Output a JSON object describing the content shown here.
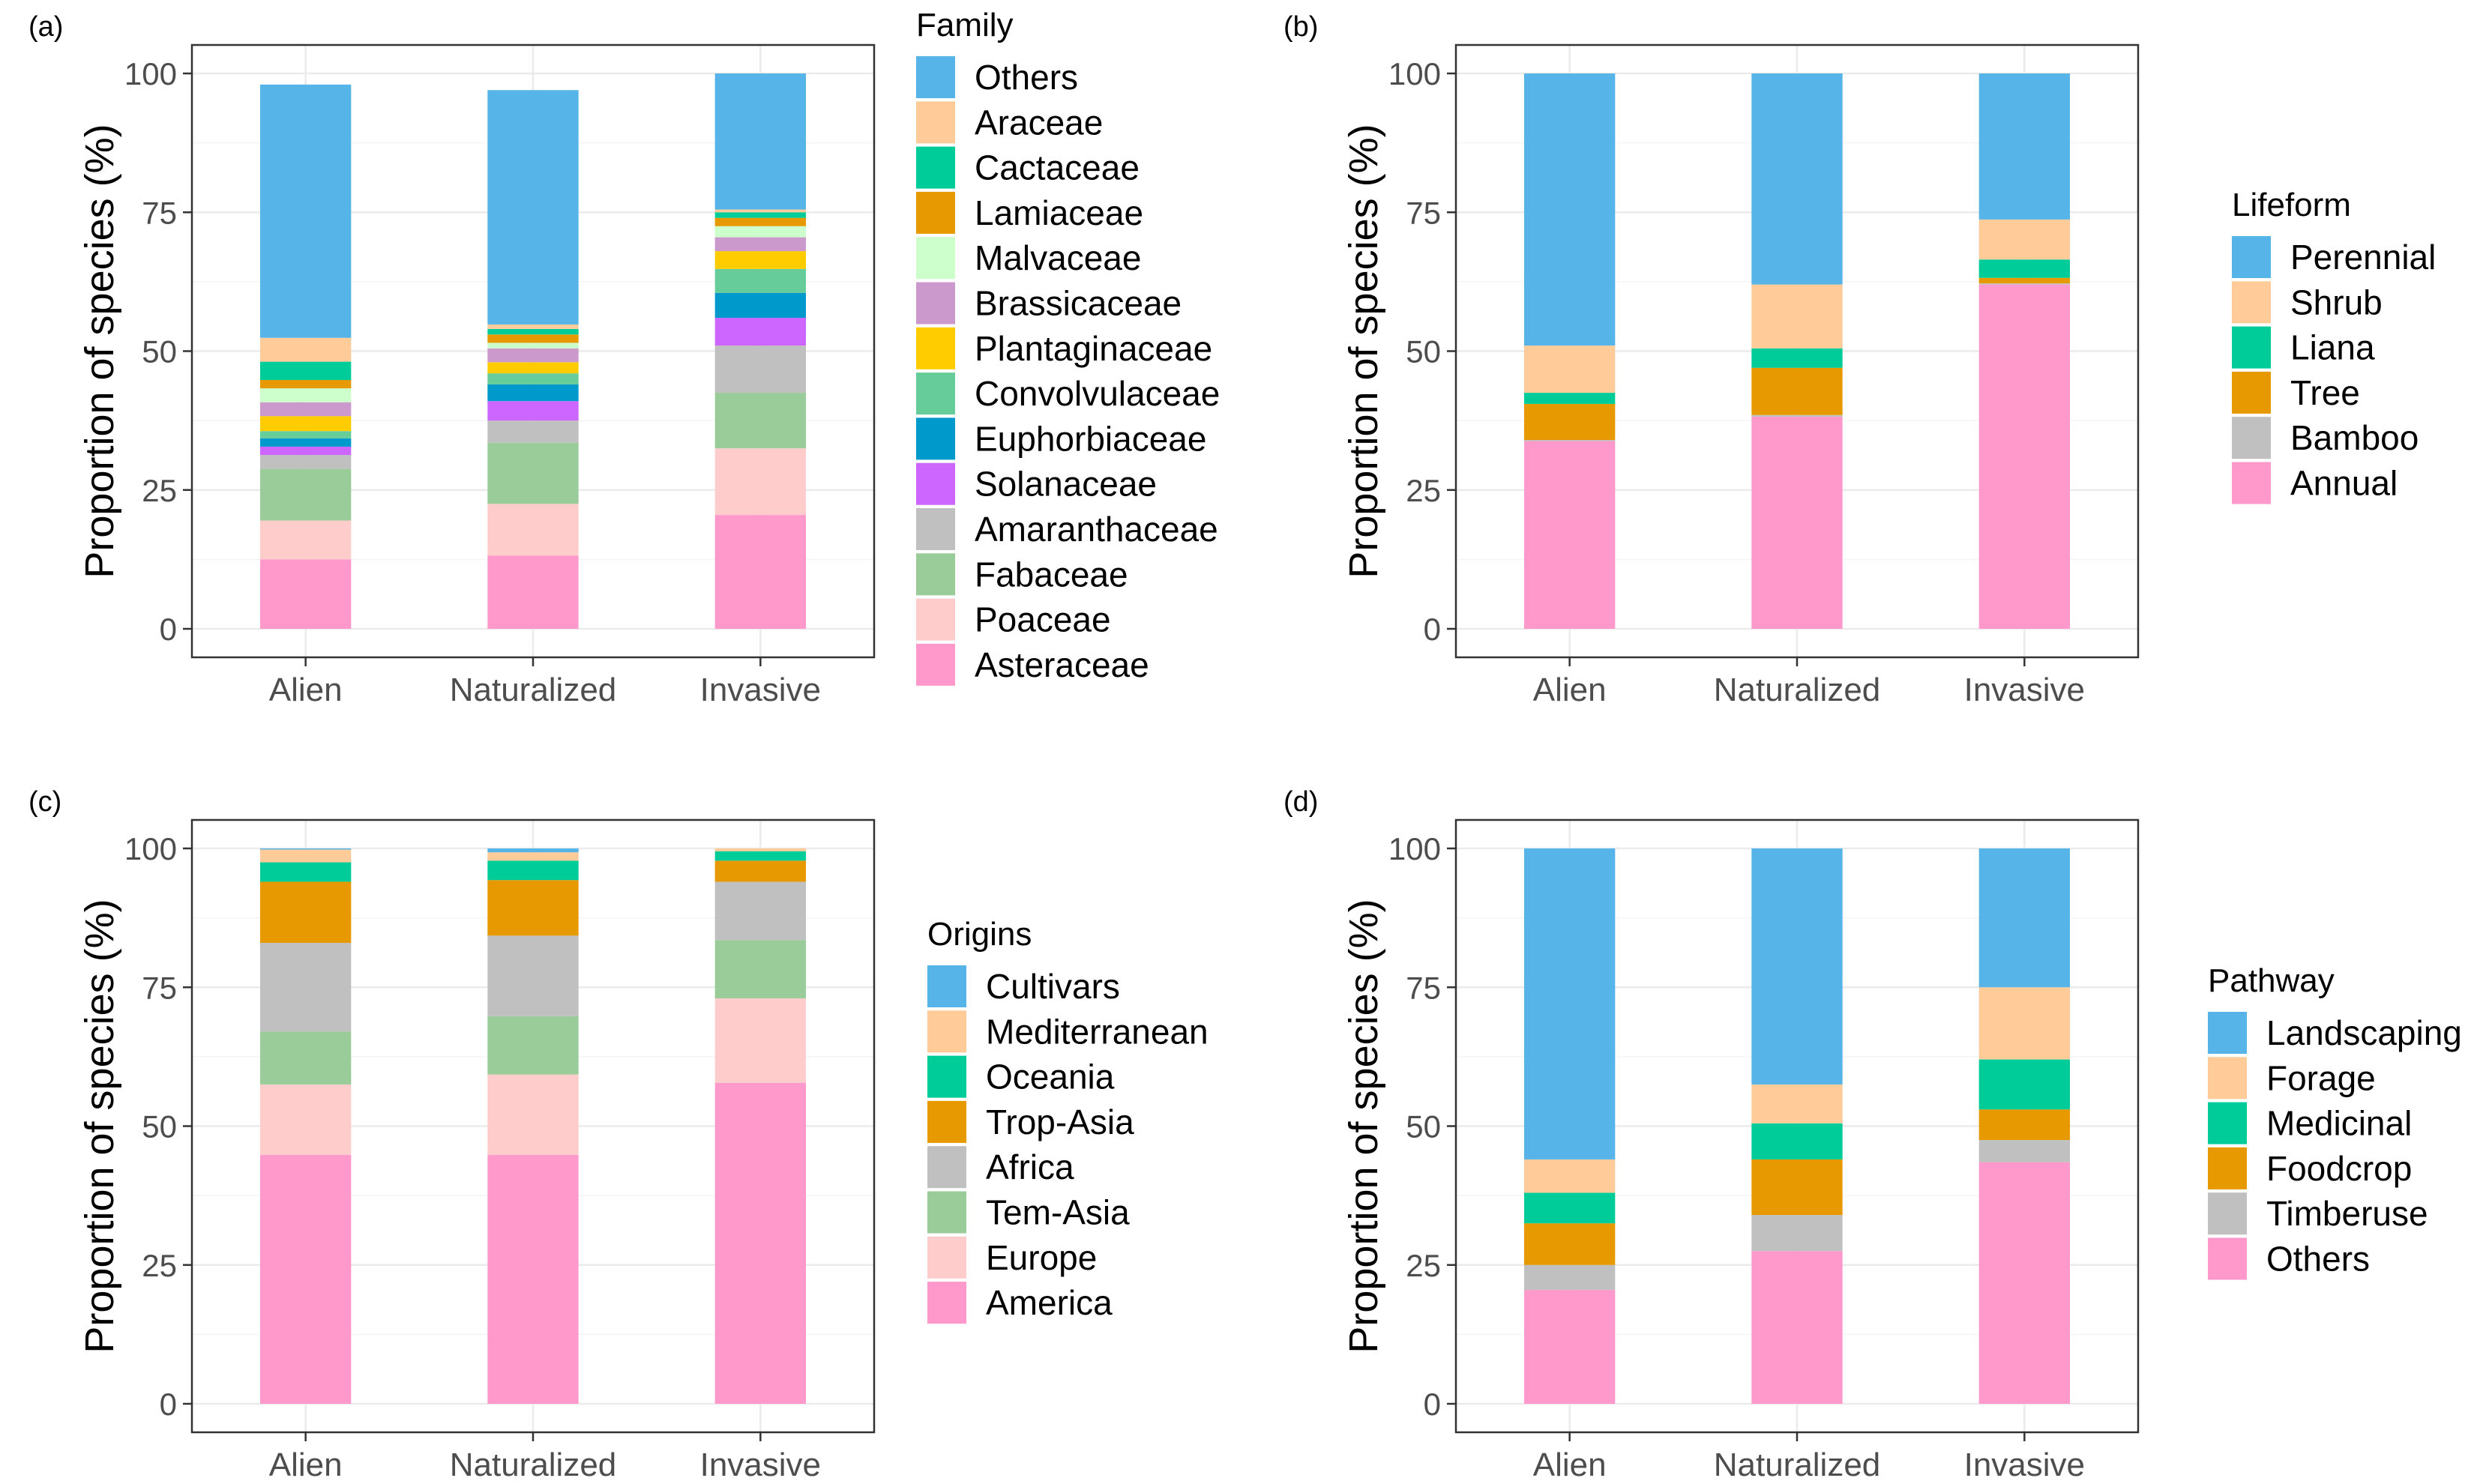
{
  "chart_data": [
    {
      "panel_label": "(a)",
      "type": "bar",
      "stacked": true,
      "categories": [
        "Alien",
        "Naturalized",
        "Invasive"
      ],
      "ylabel": "Proportion of species (%)",
      "ylim": [
        0,
        100
      ],
      "yticks": [
        "0",
        "25",
        "50",
        "75",
        "100"
      ],
      "legend_title": "Family",
      "series": [
        {
          "name": "Asteraceae",
          "color": "#FF99CC",
          "values": [
            12.5,
            13.2,
            20.5
          ]
        },
        {
          "name": "Poaceae",
          "color": "#FFCCCC",
          "values": [
            7.0,
            9.3,
            12.0
          ]
        },
        {
          "name": "Fabaceae",
          "color": "#99CC99",
          "values": [
            9.3,
            11.0,
            10.0
          ]
        },
        {
          "name": "Amaranthaceae",
          "color": "#C0C0C0",
          "values": [
            2.5,
            4.0,
            8.5
          ]
        },
        {
          "name": "Solanaceae",
          "color": "#CC66FF",
          "values": [
            1.5,
            3.5,
            5.0
          ]
        },
        {
          "name": "Euphorbiaceae",
          "color": "#0099CC",
          "values": [
            1.5,
            3.0,
            4.5
          ]
        },
        {
          "name": "Convolvulaceae",
          "color": "#66CC99",
          "values": [
            1.3,
            2.0,
            4.3
          ]
        },
        {
          "name": "Plantaginaceae",
          "color": "#FFCC00",
          "values": [
            2.7,
            2.0,
            3.2
          ]
        },
        {
          "name": "Brassicaceae",
          "color": "#CC99CC",
          "values": [
            2.5,
            2.5,
            2.5
          ]
        },
        {
          "name": "Malvaceae",
          "color": "#CCFFCC",
          "values": [
            2.5,
            1.0,
            2.0
          ]
        },
        {
          "name": "Lamiaceae",
          "color": "#E69900",
          "values": [
            1.5,
            1.5,
            1.5
          ]
        },
        {
          "name": "Cactaceae",
          "color": "#00CC99",
          "values": [
            3.3,
            1.0,
            1.0
          ]
        },
        {
          "name": "Araceae",
          "color": "#FFCC99",
          "values": [
            4.3,
            0.8,
            0.5
          ]
        },
        {
          "name": "Others",
          "color": "#56B4E9",
          "values": [
            45.6,
            42.2,
            24.5
          ]
        }
      ]
    },
    {
      "panel_label": "(b)",
      "type": "bar",
      "stacked": true,
      "categories": [
        "Alien",
        "Naturalized",
        "Invasive"
      ],
      "ylabel": "Proportion of species (%)",
      "ylim": [
        0,
        100
      ],
      "yticks": [
        "0",
        "25",
        "50",
        "75",
        "100"
      ],
      "legend_title": "Lifeform",
      "series": [
        {
          "name": "Annual",
          "color": "#FF99CC",
          "values": [
            33.8,
            38.2,
            62.0
          ]
        },
        {
          "name": "Bamboo",
          "color": "#C0C0C0",
          "values": [
            0.2,
            0.3,
            0.2
          ]
        },
        {
          "name": "Tree",
          "color": "#E69900",
          "values": [
            6.5,
            8.5,
            1.0
          ]
        },
        {
          "name": "Liana",
          "color": "#00CC99",
          "values": [
            2.0,
            3.5,
            3.3
          ]
        },
        {
          "name": "Shrub",
          "color": "#FFCC99",
          "values": [
            8.5,
            11.5,
            7.2
          ]
        },
        {
          "name": "Perennial",
          "color": "#56B4E9",
          "values": [
            49.0,
            38.0,
            26.3
          ]
        }
      ]
    },
    {
      "panel_label": "(c)",
      "type": "bar",
      "stacked": true,
      "categories": [
        "Alien",
        "Naturalized",
        "Invasive"
      ],
      "ylabel": "Proportion of species (%)",
      "ylim": [
        0,
        100
      ],
      "yticks": [
        "0",
        "25",
        "50",
        "75",
        "100"
      ],
      "legend_title": "Origins",
      "series": [
        {
          "name": "America",
          "color": "#FF99CC",
          "values": [
            44.8,
            44.8,
            57.8
          ]
        },
        {
          "name": "Europe",
          "color": "#FFCCCC",
          "values": [
            12.7,
            14.5,
            15.2
          ]
        },
        {
          "name": "Tem-Asia",
          "color": "#99CC99",
          "values": [
            9.5,
            10.5,
            10.5
          ]
        },
        {
          "name": "Africa",
          "color": "#C0C0C0",
          "values": [
            16.0,
            14.5,
            10.5
          ]
        },
        {
          "name": "Trop-Asia",
          "color": "#E69900",
          "values": [
            11.0,
            10.0,
            3.8
          ]
        },
        {
          "name": "Oceania",
          "color": "#00CC99",
          "values": [
            3.5,
            3.5,
            1.7
          ]
        },
        {
          "name": "Mediterranean",
          "color": "#FFCC99",
          "values": [
            2.3,
            1.5,
            0.5
          ]
        },
        {
          "name": "Cultivars",
          "color": "#56B4E9",
          "values": [
            0.2,
            0.7,
            0.0
          ]
        }
      ]
    },
    {
      "panel_label": "(d)",
      "type": "bar",
      "stacked": true,
      "categories": [
        "Alien",
        "Naturalized",
        "Invasive"
      ],
      "ylabel": "Proportion of species (%)",
      "ylim": [
        0,
        100
      ],
      "yticks": [
        "0",
        "25",
        "50",
        "75",
        "100"
      ],
      "legend_title": "Pathway",
      "series": [
        {
          "name": "Others",
          "color": "#FF99CC",
          "values": [
            20.5,
            27.5,
            43.5
          ]
        },
        {
          "name": "Timberuse",
          "color": "#C0C0C0",
          "values": [
            4.5,
            6.5,
            4.0
          ]
        },
        {
          "name": "Foodcrop",
          "color": "#E69900",
          "values": [
            7.5,
            10.0,
            5.5
          ]
        },
        {
          "name": "Medicinal",
          "color": "#00CC99",
          "values": [
            5.5,
            6.5,
            9.0
          ]
        },
        {
          "name": "Forage",
          "color": "#FFCC99",
          "values": [
            6.0,
            7.0,
            13.0
          ]
        },
        {
          "name": "Landscaping",
          "color": "#56B4E9",
          "values": [
            56.0,
            42.5,
            25.0
          ]
        }
      ]
    }
  ]
}
